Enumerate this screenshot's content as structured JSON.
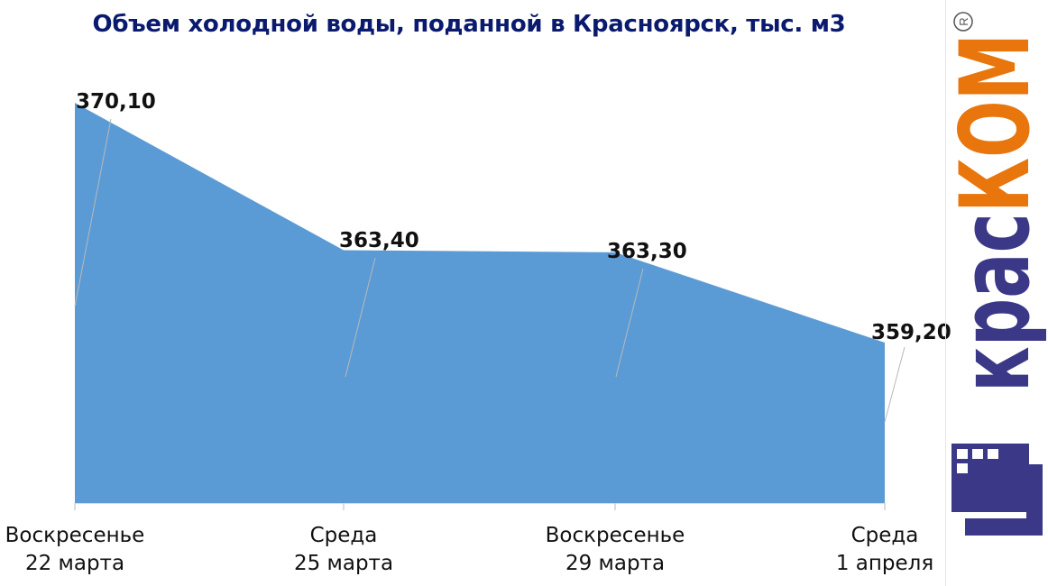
{
  "chart_data": {
    "type": "area",
    "title": "Объем холодной воды, поданной в Красноярск, тыс. м3",
    "categories": [
      [
        "Воскресенье",
        "22 марта"
      ],
      [
        "Среда",
        "25 марта"
      ],
      [
        "Воскресенье",
        "29 марта"
      ],
      [
        "Среда",
        "1 апреля"
      ]
    ],
    "values": [
      370.1,
      363.4,
      363.3,
      359.2
    ],
    "data_labels": [
      "370,10",
      "363,40",
      "363,30",
      "359,20"
    ],
    "xlabel": "",
    "ylabel": "",
    "ylim": [
      352.0,
      371.0
    ],
    "grid": false,
    "legend": "none",
    "colors": {
      "fill": "#5b9bd5",
      "title": "#0a1a6e",
      "leader": "#b8b8b8",
      "axis": "#d0d0d0"
    }
  },
  "logo": {
    "text": "красКОМ",
    "registered": "R",
    "colors": {
      "purple": "#3b3887",
      "orange": "#e8760c"
    }
  }
}
